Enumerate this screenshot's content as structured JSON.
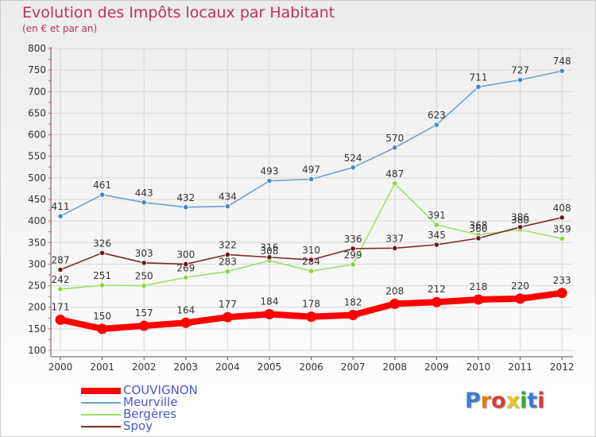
{
  "title": "Evolution des Impôts locaux par Habitant",
  "subtitle": "(en € et par an)",
  "logo": {
    "letters": [
      "P",
      "r",
      "o",
      "x",
      "i",
      "t",
      "i"
    ],
    "colors": [
      "#3a7fd0",
      "#e87a1e",
      "#d63c3c",
      "#e8c21e",
      "#3aa83a",
      "#3a7fd0",
      "#d63c3c"
    ]
  },
  "chart_data": {
    "type": "line",
    "title": "Evolution des Impôts locaux par Habitant",
    "subtitle": "(en € et par an)",
    "x": [
      "2000",
      "2001",
      "2002",
      "2003",
      "2004",
      "2005",
      "2006",
      "2007",
      "2008",
      "2009",
      "2010",
      "2011",
      "2012"
    ],
    "ylim": [
      100,
      800
    ],
    "yticks": [
      "100",
      "150",
      "200",
      "250",
      "300",
      "350",
      "400",
      "450",
      "500",
      "550",
      "600",
      "650",
      "700",
      "750",
      "800"
    ],
    "grid": true,
    "legend_position": "bottom-left",
    "series": [
      {
        "name": "COUVIGNON",
        "color": "#ff0000",
        "values": [
          171,
          150,
          157,
          164,
          177,
          184,
          178,
          182,
          208,
          212,
          218,
          220,
          233
        ],
        "labels": [
          "171",
          "150",
          "157",
          "164",
          "177",
          "184",
          "178",
          "182",
          "208",
          "212",
          "218",
          "220",
          "233"
        ]
      },
      {
        "name": "Meurville",
        "color": "#6fa0d2",
        "marker_color": "#4a86c4",
        "values": [
          411,
          461,
          443,
          432,
          434,
          493,
          497,
          524,
          570,
          623,
          711,
          727,
          748
        ],
        "labels": [
          "411",
          "461",
          "443",
          "432",
          "434",
          "493",
          "497",
          "524",
          "570",
          "623",
          "711",
          "727",
          "748"
        ]
      },
      {
        "name": "Bergères",
        "color": "#9ee06a",
        "marker_color": "#8cd24a",
        "values": [
          242,
          251,
          250,
          269,
          283,
          308,
          284,
          299,
          487,
          391,
          368,
          380,
          359
        ],
        "labels": [
          "242",
          "251",
          "250",
          "269",
          "283",
          "308",
          "284",
          "299",
          "487",
          "391",
          "368",
          "380",
          "359"
        ]
      },
      {
        "name": "Spoy",
        "color": "#7a2a2a",
        "marker_color": "#6a1e1e",
        "values": [
          287,
          326,
          303,
          300,
          322,
          316,
          310,
          336,
          337,
          345,
          360,
          386,
          408
        ],
        "labels": [
          "287",
          "326",
          "303",
          "300",
          "322",
          "316",
          "310",
          "336",
          "337",
          "345",
          "360",
          "386",
          "408"
        ]
      }
    ]
  }
}
